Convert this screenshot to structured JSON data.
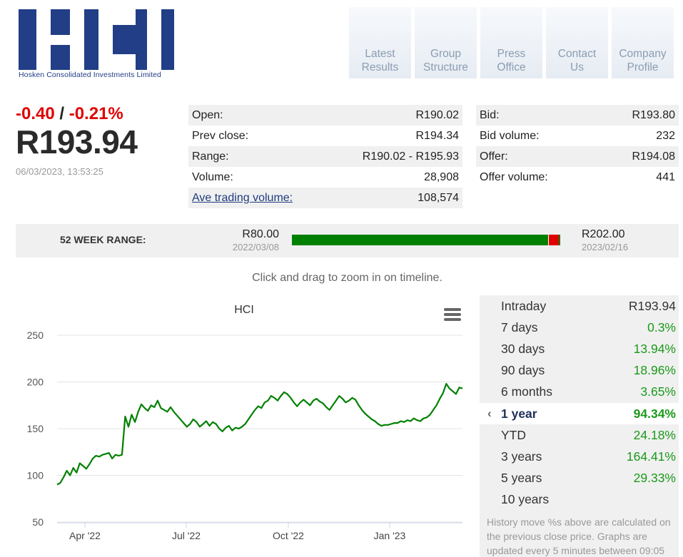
{
  "logo": {
    "caption": "Hosken Consolidated Investments Limited"
  },
  "nav": [
    {
      "label": "Latest\nResults"
    },
    {
      "label": "Group\nStructure"
    },
    {
      "label": "Press\nOffice"
    },
    {
      "label": "Contact\nUs"
    },
    {
      "label": "Company\nProfile"
    }
  ],
  "quote": {
    "change_abs": "-0.40",
    "separator": "/",
    "change_pct": "-0.21%",
    "price": "R193.94",
    "timestamp": "06/03/2023, 13:53:25"
  },
  "stats_left": [
    {
      "label": "Open:",
      "value": "R190.02"
    },
    {
      "label": "Prev close:",
      "value": "R194.34"
    },
    {
      "label": "Range:",
      "value": "R190.02 - R195.93"
    },
    {
      "label": "Volume:",
      "value": "28,908"
    },
    {
      "label": "Ave trading volume:",
      "value": "108,574"
    }
  ],
  "stats_right": [
    {
      "label": "Bid:",
      "value": "R193.80"
    },
    {
      "label": "Bid volume:",
      "value": "232"
    },
    {
      "label": "Offer:",
      "value": "R194.08"
    },
    {
      "label": "Offer volume:",
      "value": "441"
    }
  ],
  "week52": {
    "label": "52 WEEK RANGE:",
    "low": "R80.00",
    "low_date": "2022/03/08",
    "high": "R202.00",
    "high_date": "2023/02/16",
    "current_position_fraction": 0.96
  },
  "hint": "Click and drag to zoom in on timeline.",
  "chart_data": {
    "type": "line",
    "title": "HCI",
    "ylim": [
      50,
      250
    ],
    "yticks": [
      50,
      100,
      150,
      200,
      250
    ],
    "xtick_labels": [
      "Apr '22",
      "Jul '22",
      "Oct '22",
      "Jan '23"
    ],
    "grid": true,
    "color": "#008000",
    "series": [
      {
        "values": [
          90,
          92,
          98,
          105,
          100,
          108,
          103,
          113,
          110,
          107,
          112,
          118,
          121,
          120,
          122,
          123,
          124,
          118,
          122,
          121,
          122,
          163,
          152,
          165,
          157,
          168,
          176,
          172,
          169,
          175,
          173,
          180,
          172,
          170,
          168,
          173,
          168,
          164,
          160,
          156,
          152,
          155,
          160,
          157,
          152,
          155,
          158,
          153,
          157,
          155,
          150,
          147,
          151,
          153,
          148,
          151,
          150,
          152,
          155,
          160,
          165,
          170,
          174,
          172,
          178,
          180,
          185,
          183,
          180,
          185,
          189,
          187,
          183,
          178,
          174,
          178,
          181,
          178,
          175,
          180,
          182,
          179,
          177,
          173,
          170,
          175,
          180,
          185,
          182,
          178,
          180,
          183,
          181,
          175,
          170,
          166,
          163,
          160,
          158,
          155,
          153,
          154,
          154,
          155,
          156,
          156,
          158,
          157,
          159,
          158,
          161,
          159,
          158,
          161,
          162,
          165,
          170,
          175,
          182,
          188,
          198,
          193,
          190,
          187,
          194,
          193
        ]
      }
    ]
  },
  "performance": {
    "selected_chevron": "‹",
    "rows": [
      {
        "label": "Intraday",
        "value": "R193.94"
      },
      {
        "label": "7 days",
        "value": "0.3%"
      },
      {
        "label": "30 days",
        "value": "13.94%"
      },
      {
        "label": "90 days",
        "value": "18.96%"
      },
      {
        "label": "6 months",
        "value": "3.65%"
      },
      {
        "label": "1 year",
        "value": "94.34%"
      },
      {
        "label": "YTD",
        "value": "24.18%"
      },
      {
        "label": "3 years",
        "value": "164.41%"
      },
      {
        "label": "5 years",
        "value": "29.33%"
      },
      {
        "label": "10 years",
        "value": ""
      }
    ],
    "note": "History move %s above are calculated on the previous close price. Graphs are updated every 5 minutes between 09:05"
  }
}
